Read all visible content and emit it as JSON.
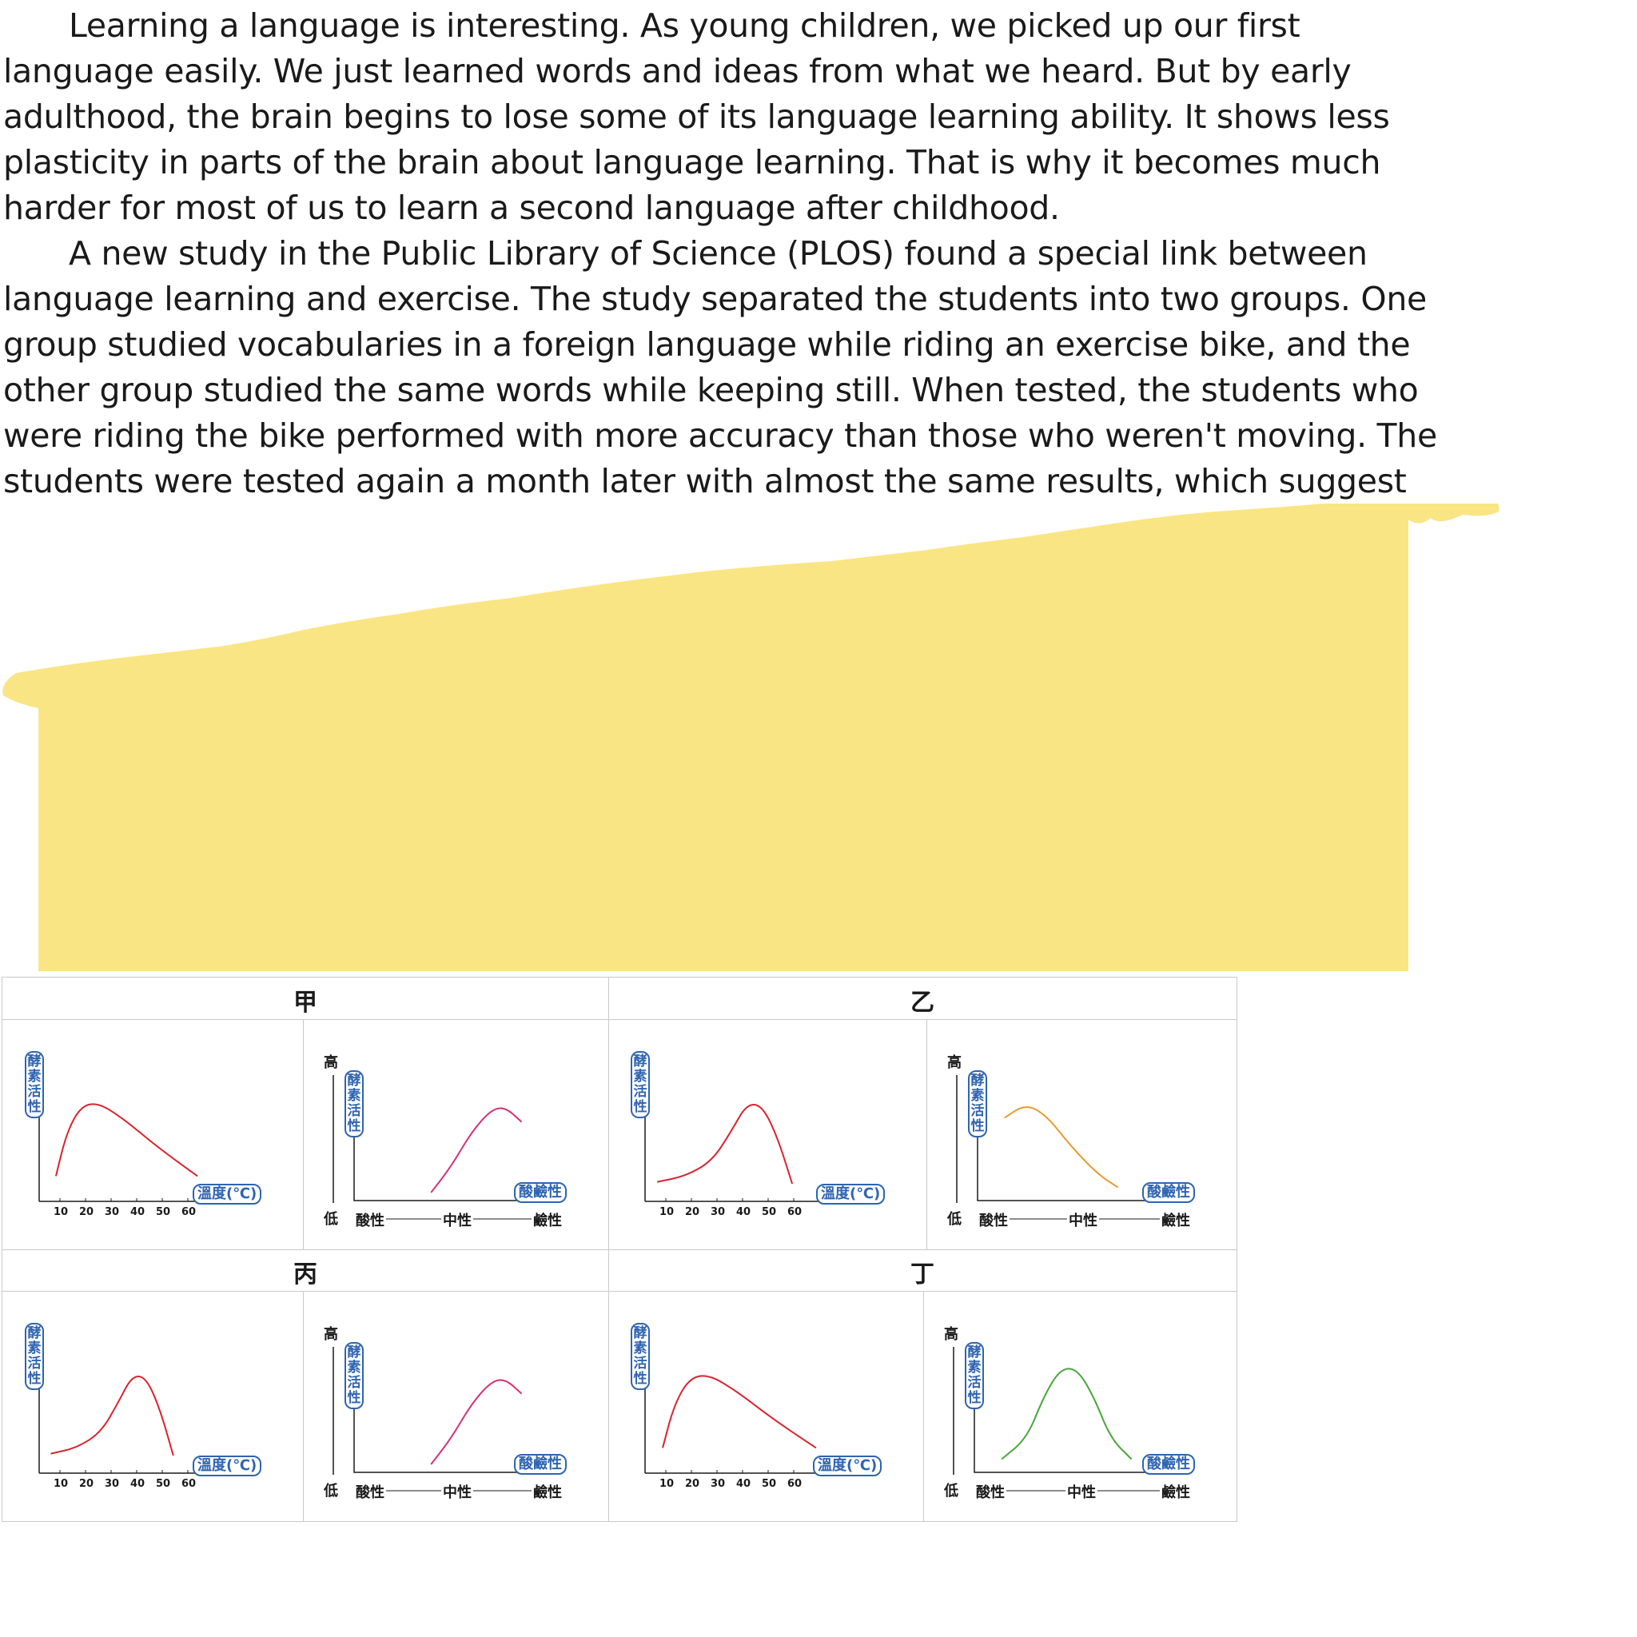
{
  "passage": {
    "paragraph_1": "Learning a language is interesting.  As young children, we picked up our first language easily.  We just learned words and ideas from what we heard.  But by early adulthood, the brain begins to lose some of its language learning ability.  It shows less plasticity in parts of the brain about language learning.  That is why it becomes much harder for most of us to learn a second language after childhood.",
    "paragraph_2": "A new study in the Public Library of Science (PLOS) found a special link between language learning and exercise.  The study separated the students into two groups.  One group studied vocabularies in a foreign language while riding an exercise bike, and the other group studied the same words while keeping still.  When tested, the students who were riding the bike performed with more accuracy than those who weren't moving.  The students were tested again a month later with almost the same results, which suggest"
  },
  "colors": {
    "highlight": "#f9e584",
    "axis_label_blue": "#2f64b1",
    "curve_red": "#d9232e",
    "curve_magenta": "#d4317a",
    "curve_orange": "#e99a2c",
    "curve_green": "#4aa63c"
  },
  "table": {
    "headers": [
      "甲",
      "乙",
      "丙",
      "丁"
    ],
    "y_label": "酵素活性",
    "temp_label": "溫度(℃)",
    "ph_label": "酸鹼性",
    "high": "高",
    "low": "低",
    "acid": "酸性",
    "neutral": "中性",
    "base": "鹼性",
    "temp_ticks": [
      "10",
      "20",
      "30",
      "40",
      "50",
      "60"
    ]
  },
  "chart_data": [
    {
      "panel": "甲",
      "type": "line",
      "xlabel": "溫度(℃)",
      "ylabel": "酵素活性",
      "shape": "early peak, gradual decline",
      "color": "red"
    },
    {
      "panel": "甲",
      "type": "line",
      "xlabel": "酸鹼性",
      "ylabel": "酵素活性",
      "shape": "rises toward alkaline",
      "color": "magenta"
    },
    {
      "panel": "乙",
      "type": "line",
      "xlabel": "溫度(℃)",
      "ylabel": "酵素活性",
      "shape": "peak near 40",
      "color": "red"
    },
    {
      "panel": "乙",
      "type": "line",
      "xlabel": "酸鹼性",
      "ylabel": "酵素活性",
      "shape": "peak on acidic side",
      "color": "orange"
    },
    {
      "panel": "丙",
      "type": "line",
      "xlabel": "溫度(℃)",
      "ylabel": "酵素活性",
      "shape": "peak near 40",
      "color": "red"
    },
    {
      "panel": "丙",
      "type": "line",
      "xlabel": "酸鹼性",
      "ylabel": "酵素活性",
      "shape": "rises toward alkaline",
      "color": "magenta"
    },
    {
      "panel": "丁",
      "type": "line",
      "xlabel": "溫度(℃)",
      "ylabel": "酵素活性",
      "shape": "early peak, gradual decline",
      "color": "red"
    },
    {
      "panel": "丁",
      "type": "line",
      "xlabel": "酸鹼性",
      "ylabel": "酵素活性",
      "shape": "peak at neutral",
      "color": "green"
    }
  ]
}
